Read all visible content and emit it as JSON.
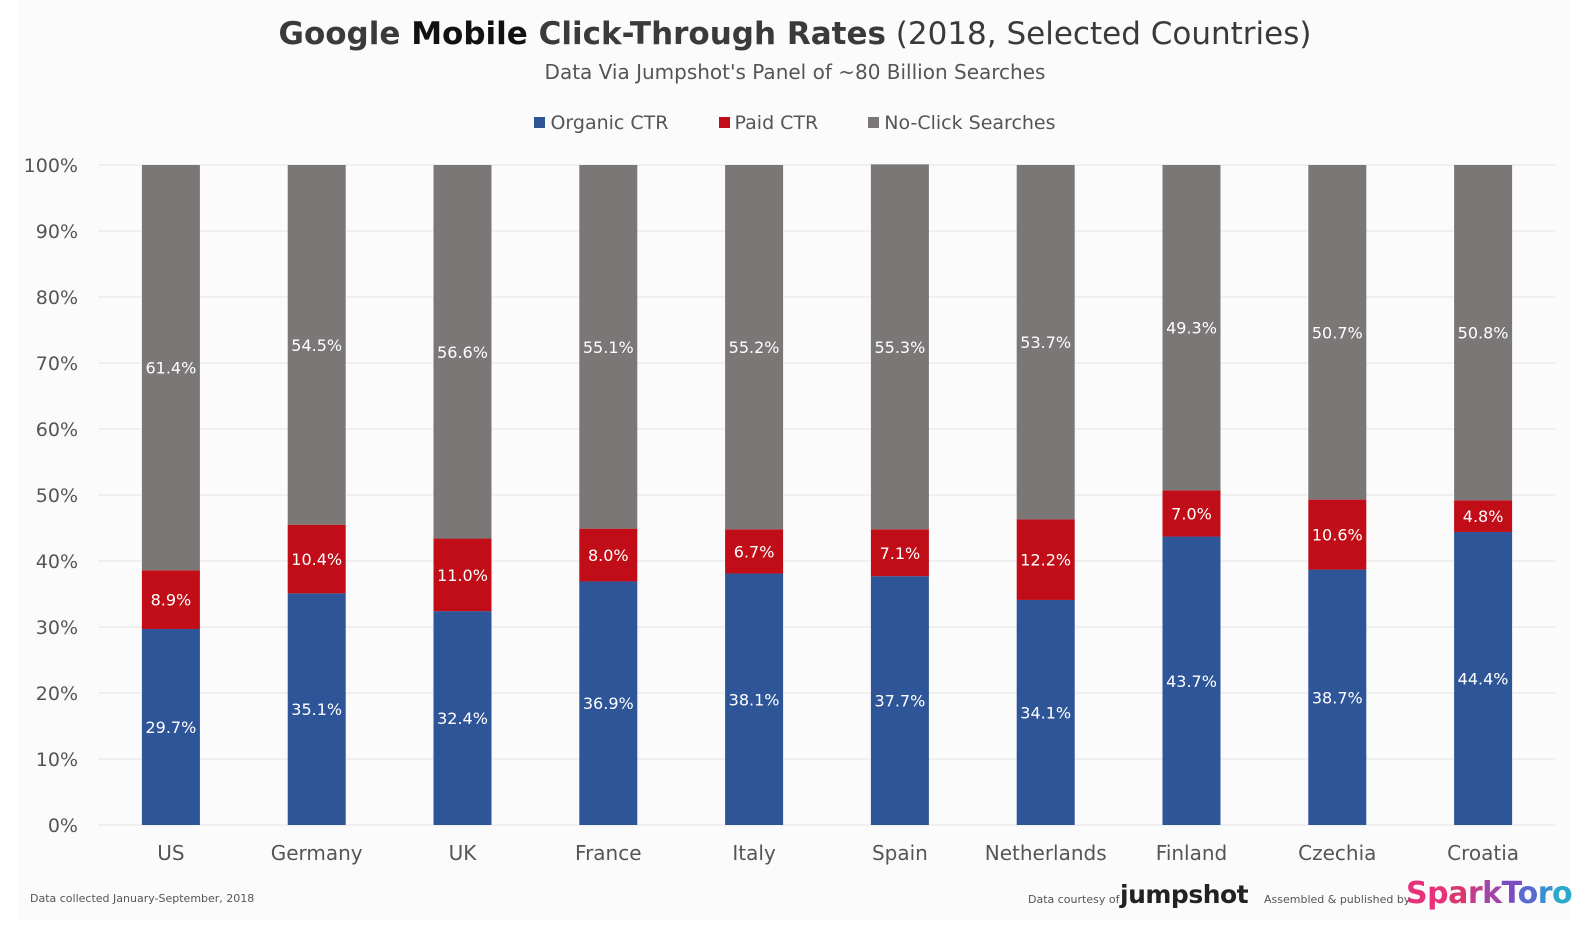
{
  "title": {
    "part1": "Google ",
    "part2": "Mobile",
    "part3": " Click-Through Rates",
    "part4": " (2018, Selected Countries)"
  },
  "subtitle": "Data Via Jumpshot's Panel of ~80 Billion Searches",
  "colors": {
    "organic": "#2e5597",
    "paid": "#c00d18",
    "noclick": "#7b7777",
    "grid": "#e6e6e6",
    "axis_text": "#555555"
  },
  "chart_data": {
    "type": "bar",
    "stacked": true,
    "categories": [
      "US",
      "Germany",
      "UK",
      "France",
      "Italy",
      "Spain",
      "Netherlands",
      "Finland",
      "Czechia",
      "Croatia"
    ],
    "series": [
      {
        "name": "Organic CTR",
        "values": [
          29.7,
          35.1,
          32.4,
          36.9,
          38.1,
          37.7,
          34.1,
          43.7,
          38.7,
          44.4
        ],
        "labels": [
          "29.7%",
          "35.1%",
          "32.4%",
          "36.9%",
          "38.1%",
          "37.7%",
          "34.1%",
          "43.7%",
          "38.7%",
          "44.4%"
        ]
      },
      {
        "name": "Paid CTR",
        "values": [
          8.9,
          10.4,
          11.0,
          8.0,
          6.7,
          7.1,
          12.2,
          7.0,
          10.6,
          4.8
        ],
        "labels": [
          "8.9%",
          "10.4%",
          "11.0%",
          "8.0%",
          "6.7%",
          "7.1%",
          "12.2%",
          "7.0%",
          "10.6%",
          "4.8%"
        ]
      },
      {
        "name": "No-Click Searches",
        "values": [
          61.4,
          54.5,
          56.6,
          55.1,
          55.2,
          55.3,
          53.7,
          49.3,
          50.7,
          50.8
        ],
        "labels": [
          "61.4%",
          "54.5%",
          "56.6%",
          "55.1%",
          "55.2%",
          "55.3%",
          "53.7%",
          "49.3%",
          "50.7%",
          "50.8%"
        ]
      }
    ],
    "ylim": [
      0,
      100
    ],
    "yticks": [
      "0%",
      "10%",
      "20%",
      "30%",
      "40%",
      "50%",
      "60%",
      "70%",
      "80%",
      "90%",
      "100%"
    ],
    "grid": true,
    "legend_position": "top"
  },
  "footer": {
    "note": "Data collected January-September, 2018",
    "courtesy": "Data courtesy of",
    "jumpshot": "jumpshot",
    "assembled": "Assembled & published by",
    "sparktoro": "SparkToro"
  }
}
